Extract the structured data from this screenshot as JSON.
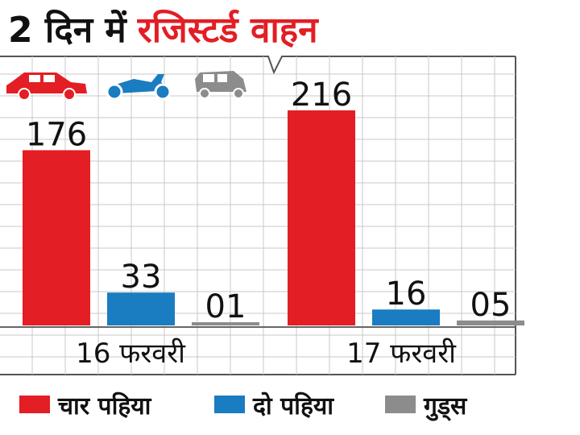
{
  "title": {
    "prefix": "2 दिन में",
    "highlight": "रजिस्टर्ड वाहन"
  },
  "colors": {
    "four_wheeler": "#e31e24",
    "two_wheeler": "#1a7cc1",
    "goods": "#8c8c8c",
    "grid": "#c8c8c8",
    "frame": "#555555"
  },
  "icons": [
    "car-icon",
    "scooter-icon",
    "auto-rickshaw-icon"
  ],
  "legend": [
    {
      "label": "चार पहिया",
      "color": "#e31e24"
    },
    {
      "label": "दो पहिया",
      "color": "#1a7cc1"
    },
    {
      "label": "गुड्स",
      "color": "#8c8c8c"
    }
  ],
  "chart_data": {
    "type": "bar",
    "categories": [
      "16 फरवरी",
      "17 फरवरी"
    ],
    "series": [
      {
        "name": "चार पहिया",
        "values": [
          176,
          216
        ],
        "labels": [
          "176",
          "216"
        ]
      },
      {
        "name": "दो पहिया",
        "values": [
          33,
          16
        ],
        "labels": [
          "33",
          "16"
        ]
      },
      {
        "name": "गुड्स",
        "values": [
          1,
          5
        ],
        "labels": [
          "01",
          "05"
        ]
      }
    ],
    "ylim": [
      0,
      216
    ],
    "grid": true,
    "legend_position": "bottom"
  }
}
